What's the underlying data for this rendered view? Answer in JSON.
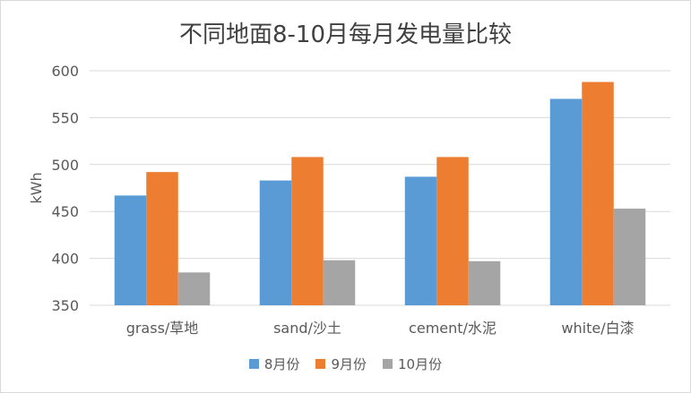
{
  "chart_data": {
    "type": "bar",
    "title": "不同地面8-10月每月发电量比较",
    "xlabel": "",
    "ylabel": "kWh",
    "ylim": [
      350,
      600
    ],
    "yticks": [
      350,
      400,
      450,
      500,
      550,
      600
    ],
    "categories": [
      "grass/草地",
      "sand/沙土",
      "cement/水泥",
      "white/白漆"
    ],
    "series": [
      {
        "name": "8月份",
        "color": "#5B9BD5",
        "values": [
          467,
          483,
          487,
          570
        ]
      },
      {
        "name": "9月份",
        "color": "#ED7D31",
        "values": [
          492,
          508,
          508,
          588
        ]
      },
      {
        "name": "10月份",
        "color": "#A5A5A5",
        "values": [
          385,
          398,
          397,
          453
        ]
      }
    ],
    "grid": true,
    "legend_position": "bottom"
  }
}
